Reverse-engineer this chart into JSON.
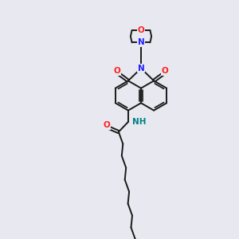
{
  "background_color": "#e8e8f0",
  "atom_colors": {
    "N": "#2020ff",
    "O": "#ff2020",
    "NH": "#008080",
    "C": "#1a1a1a"
  },
  "bond_color": "#1a1a1a",
  "bond_width": 1.4,
  "fig_w": 3.0,
  "fig_h": 3.0,
  "dpi": 100,
  "xlim": [
    0,
    10
  ],
  "ylim": [
    0,
    10
  ]
}
